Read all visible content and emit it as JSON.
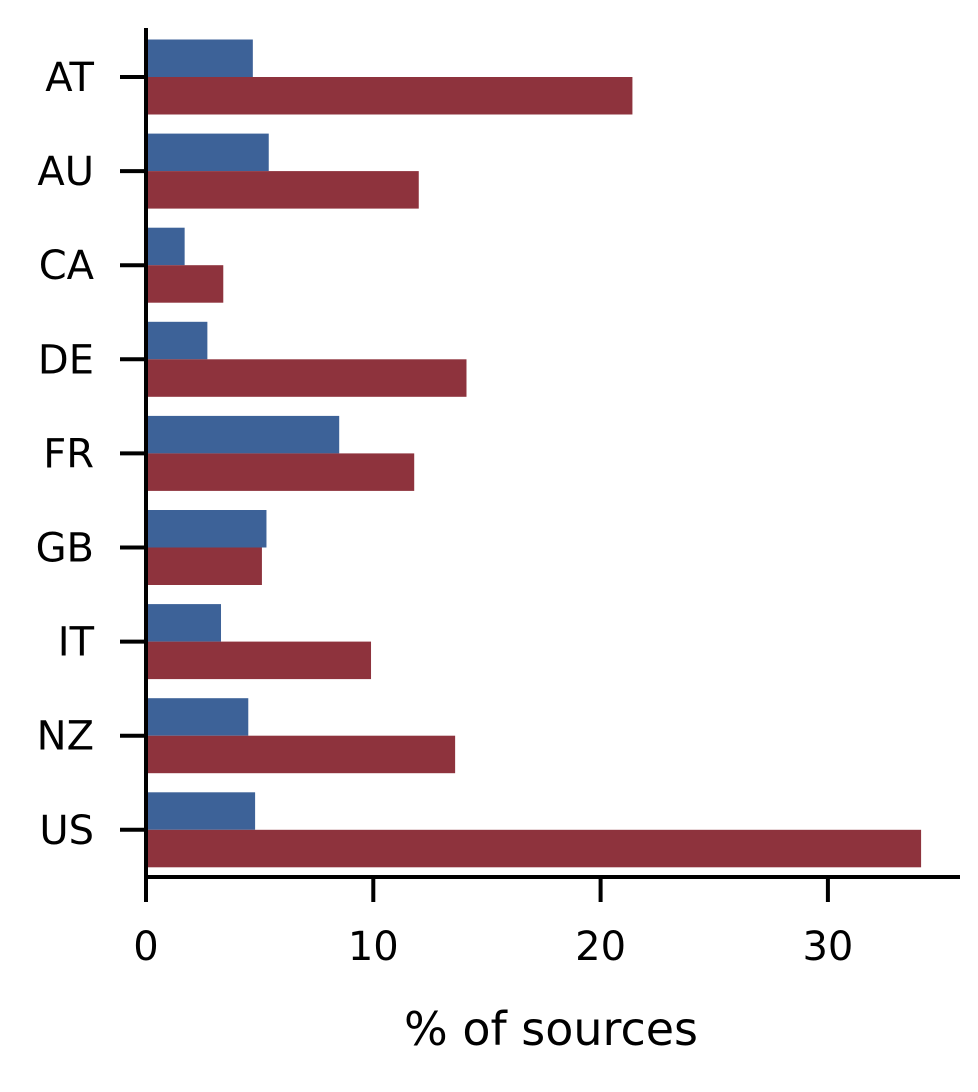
{
  "chart_data": {
    "type": "bar",
    "orientation": "horizontal",
    "categories": [
      "AT",
      "AU",
      "CA",
      "DE",
      "FR",
      "GB",
      "IT",
      "NZ",
      "US"
    ],
    "series": [
      {
        "color": "#3d6298",
        "values": [
          4.7,
          5.4,
          1.7,
          2.7,
          8.5,
          5.3,
          3.3,
          4.5,
          4.8
        ]
      },
      {
        "color": "#8e333d",
        "values": [
          21.4,
          12.0,
          3.4,
          14.1,
          11.8,
          5.1,
          9.9,
          13.6,
          34.1
        ]
      }
    ],
    "xlabel": "% of sources",
    "ylabel": "",
    "xlim": [
      0,
      36
    ],
    "xticks": [
      0,
      10,
      20,
      30
    ],
    "grid": false,
    "legend": "none"
  }
}
